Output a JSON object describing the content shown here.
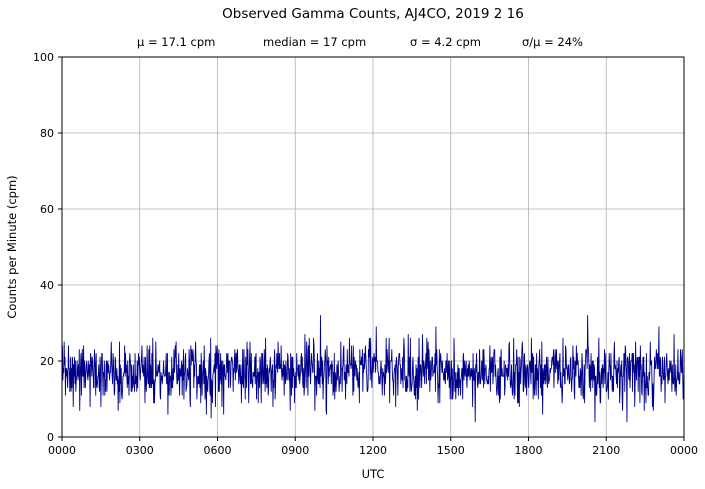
{
  "title": "Observed Gamma Counts, AJ4CO, 2019 2 16",
  "stats_line": {
    "mu": "μ = 17.1 cpm",
    "median": "median = 17 cpm",
    "sigma": "σ = 4.2 cpm",
    "sigma_over_mu": "σ/μ = 24%"
  },
  "chart_data": {
    "type": "line",
    "title": "Observed Gamma Counts, AJ4CO, 2019 2 16",
    "subtitle_stats": {
      "mu_cpm": 17.1,
      "median_cpm": 17,
      "sigma_cpm": 4.2,
      "sigma_over_mu_pct": 24
    },
    "xlabel": "UTC",
    "ylabel": "Counts per Minute (cpm)",
    "x_tick_labels": [
      "0000",
      "0300",
      "0600",
      "0900",
      "1200",
      "1500",
      "1800",
      "2100",
      "0000"
    ],
    "y_ticks": [
      0,
      20,
      40,
      60,
      80,
      100
    ],
    "ylim": [
      0,
      100
    ],
    "x_range_hours": 24,
    "grid": true,
    "legend": "none",
    "line_color": "#00008B",
    "grid_color": "#b0b0b0",
    "axis_color": "#000000",
    "series_generator": {
      "description": "one gamma count sample per minute over 24 h; noisy series around the mean",
      "seed": 20190216,
      "n_points": 1440,
      "mean": 17.1,
      "sigma": 4.2,
      "observed_min": 5,
      "observed_max": 34,
      "integer_counts": true
    }
  }
}
